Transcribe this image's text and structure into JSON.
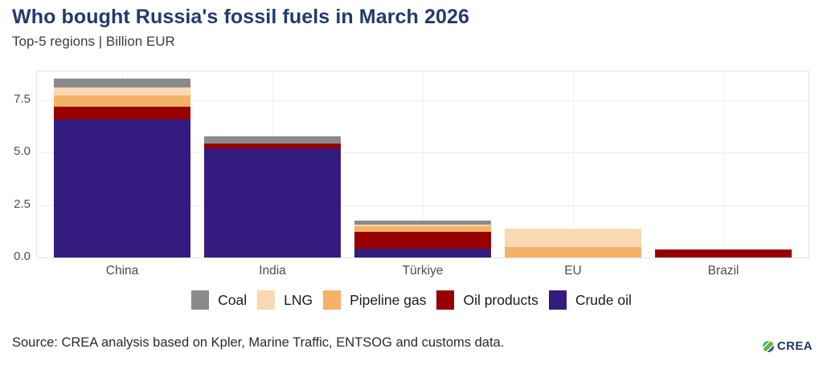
{
  "header": {
    "title": "Who bought Russia's fossil fuels in March 2026",
    "subtitle": "Top-5 regions | Billion EUR"
  },
  "chart_data": {
    "type": "bar",
    "stacked": true,
    "title": "Who bought Russia's fossil fuels in March 2026",
    "subtitle": "Top-5 regions | Billion EUR",
    "categories": [
      "China",
      "India",
      "Türkiye",
      "EU",
      "Brazil"
    ],
    "series": [
      {
        "name": "Crude oil",
        "color": "#341b80",
        "values": [
          6.6,
          5.2,
          0.42,
          0,
          0
        ]
      },
      {
        "name": "Oil products",
        "color": "#970000",
        "values": [
          0.59,
          0.23,
          0.8,
          0,
          0.4
        ]
      },
      {
        "name": "Pipeline gas",
        "color": "#f5b267",
        "values": [
          0.56,
          0,
          0.27,
          0.49,
          0
        ]
      },
      {
        "name": "LNG",
        "color": "#fad8b2",
        "values": [
          0.36,
          0,
          0.06,
          0.88,
          0
        ]
      },
      {
        "name": "Coal",
        "color": "#8a8a8a",
        "values": [
          0.42,
          0.34,
          0.21,
          0,
          0
        ]
      }
    ],
    "totals": [
      8.53,
      5.77,
      1.76,
      1.37,
      0.4
    ],
    "xlabel": "",
    "ylabel": "",
    "ylim": [
      0,
      8.92
    ],
    "ytick_labels": [
      "0.0",
      "2.5",
      "5.0",
      "7.5"
    ],
    "ytick_values": [
      0,
      2.5,
      5.0,
      7.5
    ],
    "grid": true,
    "legend_position": "bottom",
    "legend_order": [
      "Coal",
      "LNG",
      "Pipeline gas",
      "Oil products",
      "Crude oil"
    ]
  },
  "legend": {
    "items": [
      {
        "label": "Coal",
        "color": "#8a8a8a"
      },
      {
        "label": "LNG",
        "color": "#fad8b2"
      },
      {
        "label": "Pipeline gas",
        "color": "#f5b267"
      },
      {
        "label": "Oil products",
        "color": "#970000"
      },
      {
        "label": "Crude oil",
        "color": "#341b80"
      }
    ]
  },
  "footer": {
    "source": "Source: CREA analysis based on Kpler, Marine Traffic, ENTSOG and customs data.",
    "logo_text": "CREA"
  }
}
